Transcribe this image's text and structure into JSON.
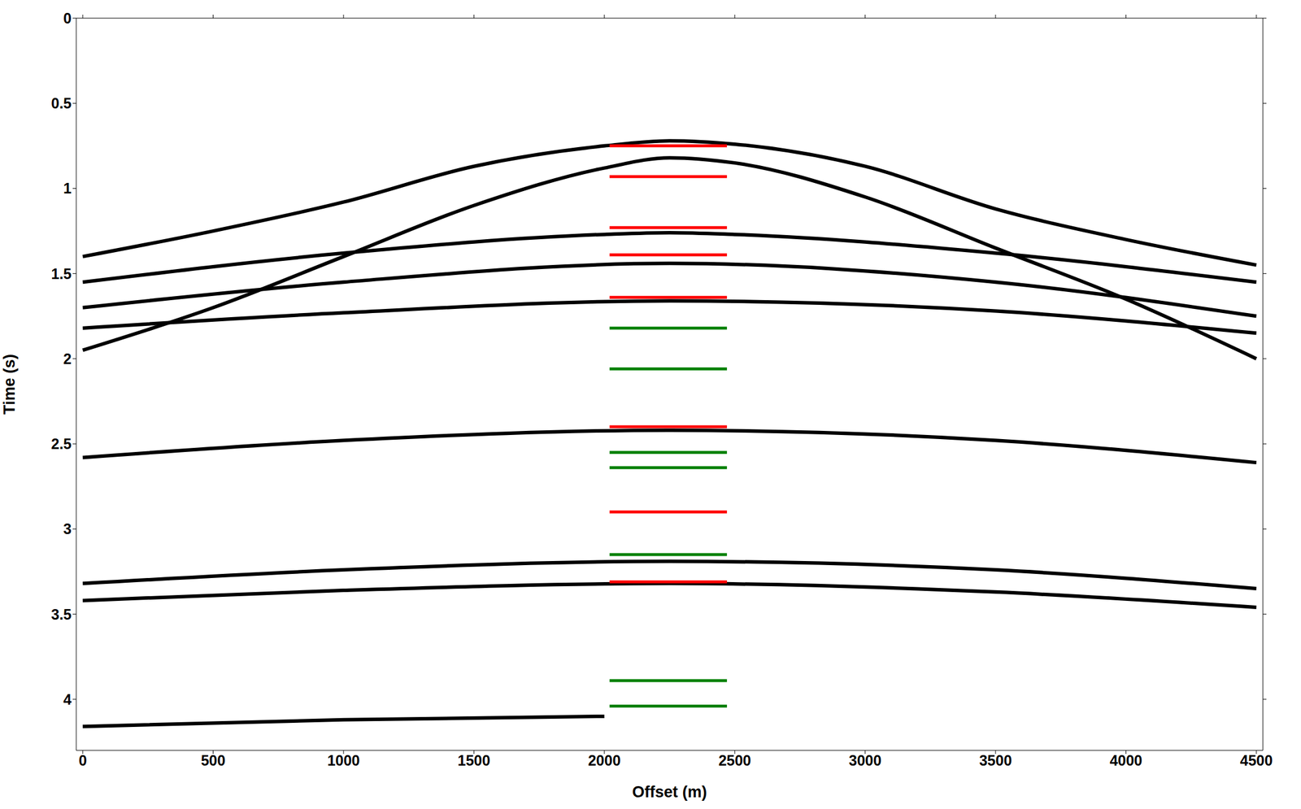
{
  "chart_data": {
    "type": "line",
    "x_label": "Offset (m)",
    "y_label": "Time (s)",
    "xlim": [
      -25,
      4525
    ],
    "xticks": [
      0,
      500,
      1000,
      1500,
      2000,
      2500,
      3000,
      3500,
      4000,
      4500
    ],
    "ylim": [
      0,
      4.3
    ],
    "yticks": [
      0,
      0.5,
      1,
      1.5,
      2,
      2.5,
      3,
      3.5,
      4
    ],
    "y_reversed": true,
    "grid": false,
    "series": [
      {
        "color": "#000000",
        "x": [
          0,
          500,
          1000,
          1500,
          2000,
          2250,
          2500,
          3000,
          3500,
          4000,
          4500
        ],
        "values": [
          1.4,
          1.25,
          1.08,
          0.87,
          0.75,
          0.72,
          0.74,
          0.87,
          1.12,
          1.3,
          1.45
        ]
      },
      {
        "color": "#000000",
        "x": [
          0,
          500,
          1000,
          1500,
          2000,
          2250,
          2500,
          3000,
          3500,
          4000,
          4500
        ],
        "values": [
          1.95,
          1.7,
          1.4,
          1.1,
          0.88,
          0.82,
          0.85,
          1.05,
          1.35,
          1.65,
          2.0
        ]
      },
      {
        "color": "#000000",
        "x": [
          0,
          1000,
          2000,
          2250,
          2500,
          3500,
          4500
        ],
        "values": [
          1.55,
          1.38,
          1.27,
          1.26,
          1.27,
          1.38,
          1.55
        ]
      },
      {
        "color": "#000000",
        "x": [
          0,
          1000,
          2250,
          3500,
          4500
        ],
        "values": [
          1.7,
          1.55,
          1.44,
          1.55,
          1.75
        ]
      },
      {
        "color": "#000000",
        "x": [
          0,
          1000,
          2250,
          3500,
          4500
        ],
        "values": [
          1.82,
          1.73,
          1.66,
          1.72,
          1.85
        ]
      },
      {
        "color": "#000000",
        "x": [
          0,
          1000,
          2250,
          3500,
          4500
        ],
        "values": [
          2.58,
          2.48,
          2.42,
          2.48,
          2.61
        ]
      },
      {
        "color": "#000000",
        "x": [
          0,
          1000,
          2250,
          3500,
          4500
        ],
        "values": [
          3.32,
          3.24,
          3.19,
          3.24,
          3.35
        ]
      },
      {
        "color": "#000000",
        "x": [
          0,
          1000,
          2250,
          3500,
          4500
        ],
        "values": [
          3.42,
          3.36,
          3.32,
          3.37,
          3.46
        ]
      },
      {
        "color": "#000000",
        "x": [
          0,
          1000,
          2000
        ],
        "values": [
          4.16,
          4.12,
          4.1
        ]
      },
      {
        "color": "#ff0000",
        "x": [
          2020,
          2470
        ],
        "values": [
          0.75,
          0.75
        ]
      },
      {
        "color": "#ff0000",
        "x": [
          2020,
          2470
        ],
        "values": [
          0.93,
          0.93
        ]
      },
      {
        "color": "#ff0000",
        "x": [
          2020,
          2470
        ],
        "values": [
          1.23,
          1.23
        ]
      },
      {
        "color": "#ff0000",
        "x": [
          2020,
          2470
        ],
        "values": [
          1.39,
          1.39
        ]
      },
      {
        "color": "#ff0000",
        "x": [
          2020,
          2470
        ],
        "values": [
          1.64,
          1.64
        ]
      },
      {
        "color": "#ff0000",
        "x": [
          2020,
          2470
        ],
        "values": [
          2.4,
          2.4
        ]
      },
      {
        "color": "#ff0000",
        "x": [
          2020,
          2470
        ],
        "values": [
          2.9,
          2.9
        ]
      },
      {
        "color": "#ff0000",
        "x": [
          2020,
          2470
        ],
        "values": [
          3.31,
          3.31
        ]
      },
      {
        "color": "#008000",
        "x": [
          2020,
          2470
        ],
        "values": [
          1.82,
          1.82
        ]
      },
      {
        "color": "#008000",
        "x": [
          2020,
          2470
        ],
        "values": [
          2.06,
          2.06
        ]
      },
      {
        "color": "#008000",
        "x": [
          2020,
          2470
        ],
        "values": [
          2.55,
          2.55
        ]
      },
      {
        "color": "#008000",
        "x": [
          2020,
          2470
        ],
        "values": [
          2.64,
          2.64
        ]
      },
      {
        "color": "#008000",
        "x": [
          2020,
          2470
        ],
        "values": [
          3.15,
          3.15
        ]
      },
      {
        "color": "#008000",
        "x": [
          2020,
          2470
        ],
        "values": [
          3.89,
          3.89
        ]
      },
      {
        "color": "#008000",
        "x": [
          2020,
          2470
        ],
        "values": [
          4.04,
          4.04
        ]
      }
    ]
  }
}
